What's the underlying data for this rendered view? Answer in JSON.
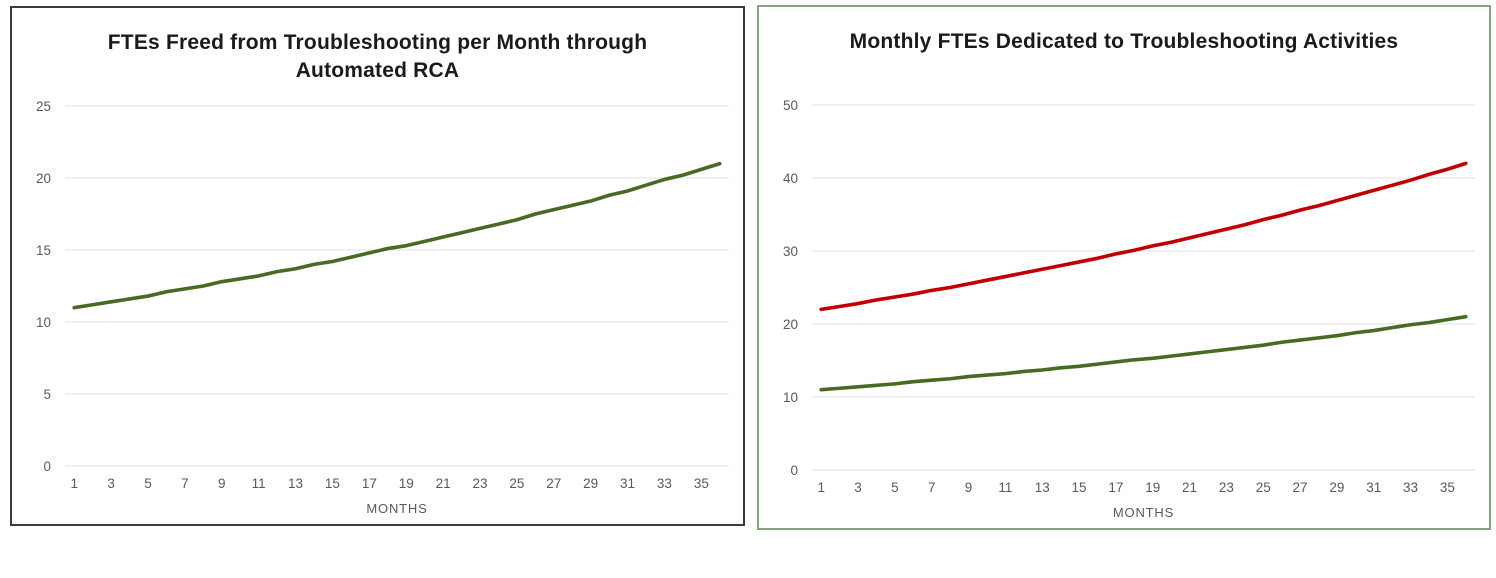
{
  "page": {
    "background": "#ffffff"
  },
  "chart_data": [
    {
      "id": "ftes-freed",
      "type": "line",
      "title": "FTEs Freed from Troubleshooting per Month through Automated RCA",
      "xlabel": "MONTHS",
      "ylabel": "",
      "ylim": [
        0,
        25
      ],
      "y_ticks": [
        0,
        5,
        10,
        15,
        20,
        25
      ],
      "x": [
        1,
        2,
        3,
        4,
        5,
        6,
        7,
        8,
        9,
        10,
        11,
        12,
        13,
        14,
        15,
        16,
        17,
        18,
        19,
        20,
        21,
        22,
        23,
        24,
        25,
        26,
        27,
        28,
        29,
        30,
        31,
        32,
        33,
        34,
        35,
        36
      ],
      "x_tick_labels": [
        1,
        3,
        5,
        7,
        9,
        11,
        13,
        15,
        17,
        19,
        21,
        23,
        25,
        27,
        29,
        31,
        33,
        35
      ],
      "grid": true,
      "legend": "none",
      "frame_color": "#3b3b3b",
      "series": [
        {
          "name": "green",
          "color": "#476b22",
          "values": [
            11,
            11.2,
            11.4,
            11.6,
            11.8,
            12.1,
            12.3,
            12.5,
            12.8,
            13,
            13.2,
            13.5,
            13.7,
            14,
            14.2,
            14.5,
            14.8,
            15.1,
            15.3,
            15.6,
            15.9,
            16.2,
            16.5,
            16.8,
            17.1,
            17.5,
            17.8,
            18.1,
            18.4,
            18.8,
            19.1,
            19.5,
            19.9,
            20.2,
            20.6,
            21
          ]
        }
      ]
    },
    {
      "id": "ftes-dedicated",
      "type": "line",
      "title": "Monthly FTEs Dedicated to Troubleshooting Activities",
      "xlabel": "MONTHS",
      "ylabel": "",
      "ylim": [
        0,
        50
      ],
      "y_ticks": [
        0,
        10,
        20,
        30,
        40,
        50
      ],
      "x": [
        1,
        2,
        3,
        4,
        5,
        6,
        7,
        8,
        9,
        10,
        11,
        12,
        13,
        14,
        15,
        16,
        17,
        18,
        19,
        20,
        21,
        22,
        23,
        24,
        25,
        26,
        27,
        28,
        29,
        30,
        31,
        32,
        33,
        34,
        35,
        36
      ],
      "x_tick_labels": [
        1,
        3,
        5,
        7,
        9,
        11,
        13,
        15,
        17,
        19,
        21,
        23,
        25,
        27,
        29,
        31,
        33,
        35
      ],
      "grid": true,
      "legend": "none",
      "frame_color": "#85a47e",
      "series": [
        {
          "name": "red",
          "color": "#c00000",
          "values": [
            22,
            22.4,
            22.8,
            23.3,
            23.7,
            24.1,
            24.6,
            25,
            25.5,
            26,
            26.5,
            27,
            27.5,
            28,
            28.5,
            29,
            29.6,
            30.1,
            30.7,
            31.2,
            31.8,
            32.4,
            33,
            33.6,
            34.3,
            34.9,
            35.6,
            36.2,
            36.9,
            37.6,
            38.3,
            39,
            39.7,
            40.5,
            41.2,
            42
          ]
        },
        {
          "name": "green",
          "color": "#476b22",
          "values": [
            11,
            11.2,
            11.4,
            11.6,
            11.8,
            12.1,
            12.3,
            12.5,
            12.8,
            13,
            13.2,
            13.5,
            13.7,
            14,
            14.2,
            14.5,
            14.8,
            15.1,
            15.3,
            15.6,
            15.9,
            16.2,
            16.5,
            16.8,
            17.1,
            17.5,
            17.8,
            18.1,
            18.4,
            18.8,
            19.1,
            19.5,
            19.9,
            20.2,
            20.6,
            21
          ]
        }
      ]
    }
  ]
}
